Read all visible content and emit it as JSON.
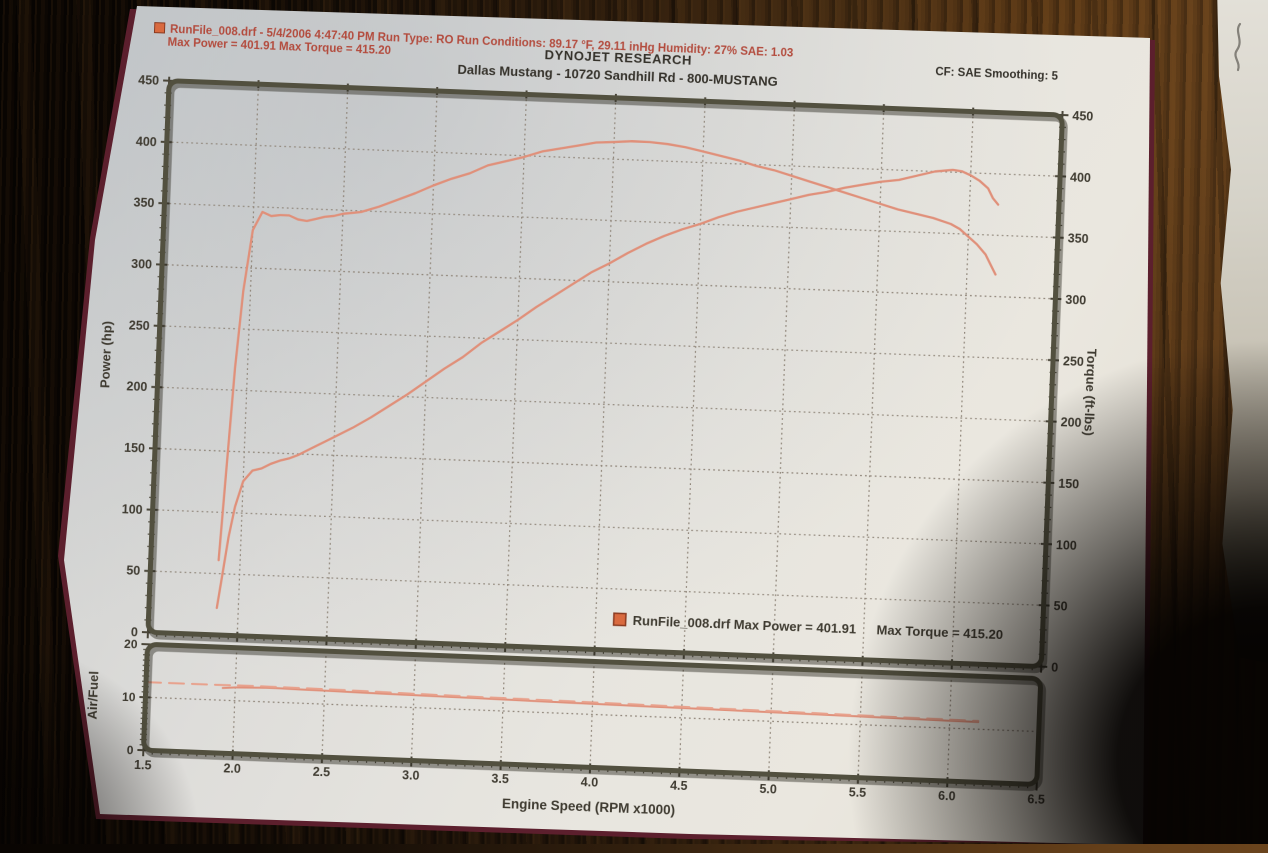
{
  "header": {
    "line1": "RunFile_008.drf - 5/4/2006 4:47:40 PM  Run Type: RO  Run Conditions: 89.17 °F, 29.11 inHg  Humidity: 27%  SAE: 1.03",
    "line2": "Max Power = 401.91  Max Torque = 415.20",
    "title": "DYNOJET RESEARCH",
    "subtitle": "Dallas Mustang - 10720 Sandhill Rd - 800-MUSTANG",
    "correction": "CF: SAE  Smoothing: 5",
    "file_swatch_icon": "run-file-color-swatch"
  },
  "side_note_icon": "pencil-squiggle-icon",
  "colors": {
    "curve": "#e0907a",
    "curve_dashed": "#e8a18c",
    "grid": "#8f8579",
    "frame": "#52503f",
    "frame_shadow": "#2a2820",
    "tick": "#4a4639",
    "text": "#3f3b31",
    "header_red": "#b34b3d",
    "legend_swatch": "#d96a3f"
  },
  "chart_data": [
    {
      "type": "line",
      "title": "DYNOJET RESEARCH",
      "subtitle": "Dallas Mustang - 10720 Sandhill Rd - 800-MUSTANG",
      "xlabel": "Engine Speed (RPM x1000)",
      "ylabel_left": "Power (hp)",
      "ylabel_right": "Torque (ft-lbs)",
      "xlim": [
        1.5,
        6.5
      ],
      "ylim": [
        0,
        450
      ],
      "x_tick_labels": [
        "1.5",
        "2.0",
        "2.5",
        "3.0",
        "3.5",
        "4.0",
        "4.5",
        "5.0",
        "5.5",
        "6.0",
        "6.5"
      ],
      "y_tick_labels": [
        "0",
        "50",
        "100",
        "150",
        "200",
        "250",
        "300",
        "350",
        "400",
        "450"
      ],
      "x_minor_step": 0.05,
      "y_minor_step": 10,
      "grid": "dotted",
      "legend": {
        "file": "RunFile_008.drf",
        "max_power": "Max Power = 401.91",
        "max_torque": "Max Torque = 415.20"
      },
      "series": [
        {
          "name": "Power (hp)",
          "axis": "left",
          "max": 401.91,
          "points": [
            [
              1.88,
              22
            ],
            [
              1.9,
              45
            ],
            [
              1.93,
              80
            ],
            [
              1.96,
              105
            ],
            [
              2.0,
              126
            ],
            [
              2.05,
              135
            ],
            [
              2.1,
              137
            ],
            [
              2.15,
              141
            ],
            [
              2.2,
              144
            ],
            [
              2.25,
              146
            ],
            [
              2.3,
              149
            ],
            [
              2.35,
              153
            ],
            [
              2.4,
              157
            ],
            [
              2.45,
              161
            ],
            [
              2.5,
              165
            ],
            [
              2.6,
              173
            ],
            [
              2.7,
              182
            ],
            [
              2.8,
              192
            ],
            [
              2.9,
              202
            ],
            [
              3.0,
              213
            ],
            [
              3.1,
              224
            ],
            [
              3.2,
              234
            ],
            [
              3.3,
              246
            ],
            [
              3.4,
              256
            ],
            [
              3.5,
              266
            ],
            [
              3.6,
              277
            ],
            [
              3.7,
              287
            ],
            [
              3.8,
              297
            ],
            [
              3.9,
              307
            ],
            [
              4.0,
              315
            ],
            [
              4.1,
              324
            ],
            [
              4.2,
              332
            ],
            [
              4.3,
              339
            ],
            [
              4.4,
              345
            ],
            [
              4.5,
              350
            ],
            [
              4.6,
              356
            ],
            [
              4.7,
              361
            ],
            [
              4.8,
              365
            ],
            [
              4.9,
              369
            ],
            [
              5.0,
              373
            ],
            [
              5.1,
              377
            ],
            [
              5.2,
              380
            ],
            [
              5.3,
              384
            ],
            [
              5.4,
              387
            ],
            [
              5.5,
              390
            ],
            [
              5.6,
              392
            ],
            [
              5.7,
              396
            ],
            [
              5.8,
              400
            ],
            [
              5.9,
              401.91
            ],
            [
              5.95,
              401
            ],
            [
              6.0,
              398
            ],
            [
              6.05,
              394
            ],
            [
              6.1,
              388
            ],
            [
              6.13,
              380
            ],
            [
              6.16,
              375
            ]
          ]
        },
        {
          "name": "Torque (ft-lbs)",
          "axis": "right",
          "max": 415.2,
          "points": [
            [
              1.88,
              61
            ],
            [
              1.9,
              124
            ],
            [
              1.93,
              218
            ],
            [
              1.96,
              281
            ],
            [
              2.0,
              331
            ],
            [
              2.05,
              346
            ],
            [
              2.1,
              343
            ],
            [
              2.15,
              344
            ],
            [
              2.2,
              344
            ],
            [
              2.25,
              341
            ],
            [
              2.3,
              340
            ],
            [
              2.35,
              342
            ],
            [
              2.4,
              344
            ],
            [
              2.45,
              345
            ],
            [
              2.5,
              347
            ],
            [
              2.6,
              349
            ],
            [
              2.7,
              354
            ],
            [
              2.8,
              360
            ],
            [
              2.9,
              366
            ],
            [
              3.0,
              373
            ],
            [
              3.1,
              379
            ],
            [
              3.2,
              384
            ],
            [
              3.3,
              391
            ],
            [
              3.4,
              395
            ],
            [
              3.5,
              399
            ],
            [
              3.6,
              404
            ],
            [
              3.7,
              407
            ],
            [
              3.8,
              410
            ],
            [
              3.9,
              413
            ],
            [
              4.0,
              414
            ],
            [
              4.1,
              415.2
            ],
            [
              4.2,
              415
            ],
            [
              4.3,
              414
            ],
            [
              4.4,
              412
            ],
            [
              4.5,
              409
            ],
            [
              4.6,
              406
            ],
            [
              4.7,
              403
            ],
            [
              4.8,
              399
            ],
            [
              4.9,
              396
            ],
            [
              5.0,
              392
            ],
            [
              5.1,
              388
            ],
            [
              5.2,
              384
            ],
            [
              5.3,
              380
            ],
            [
              5.4,
              376
            ],
            [
              5.5,
              372
            ],
            [
              5.6,
              368
            ],
            [
              5.7,
              365
            ],
            [
              5.8,
              362
            ],
            [
              5.9,
              357.7
            ],
            [
              5.95,
              354
            ],
            [
              6.0,
              348
            ],
            [
              6.05,
              342
            ],
            [
              6.1,
              334
            ],
            [
              6.13,
              326
            ],
            [
              6.16,
              318
            ]
          ]
        }
      ]
    },
    {
      "type": "line",
      "ylabel_left": "Air/Fuel",
      "xlim": [
        1.5,
        6.5
      ],
      "ylim": [
        0,
        20
      ],
      "y_tick_labels": [
        "0",
        "10",
        "20"
      ],
      "y_minor_step": 1,
      "grid_y": [
        10
      ],
      "series": [
        {
          "name": "Air/Fuel",
          "style": "solid",
          "points": [
            [
              1.93,
              12.3
            ],
            [
              2.0,
              12.5
            ],
            [
              2.1,
              12.6
            ],
            [
              2.2,
              12.7
            ],
            [
              2.35,
              12.6
            ],
            [
              2.5,
              12.55
            ],
            [
              2.8,
              12.4
            ],
            [
              3.1,
              12.3
            ],
            [
              3.4,
              12.2
            ],
            [
              3.7,
              12.1
            ],
            [
              4.0,
              12.0
            ],
            [
              4.3,
              11.9
            ],
            [
              4.6,
              11.85
            ],
            [
              4.9,
              11.75
            ],
            [
              5.2,
              11.65
            ],
            [
              5.5,
              11.55
            ],
            [
              5.8,
              11.45
            ],
            [
              6.0,
              11.4
            ],
            [
              6.16,
              11.35
            ]
          ]
        },
        {
          "name": "Air/Fuel reference",
          "style": "dashed",
          "points": [
            [
              1.5,
              12.85
            ],
            [
              1.8,
              12.85
            ],
            [
              2.1,
              12.9
            ],
            [
              2.4,
              12.85
            ],
            [
              2.7,
              12.75
            ],
            [
              3.0,
              12.6
            ],
            [
              3.3,
              12.5
            ],
            [
              3.6,
              12.4
            ],
            [
              3.9,
              12.3
            ],
            [
              4.2,
              12.2
            ],
            [
              4.5,
              12.1
            ],
            [
              4.8,
              12.0
            ],
            [
              5.1,
              11.9
            ],
            [
              5.4,
              11.8
            ],
            [
              5.7,
              11.7
            ],
            [
              6.0,
              11.6
            ],
            [
              6.16,
              11.55
            ]
          ]
        }
      ]
    }
  ]
}
